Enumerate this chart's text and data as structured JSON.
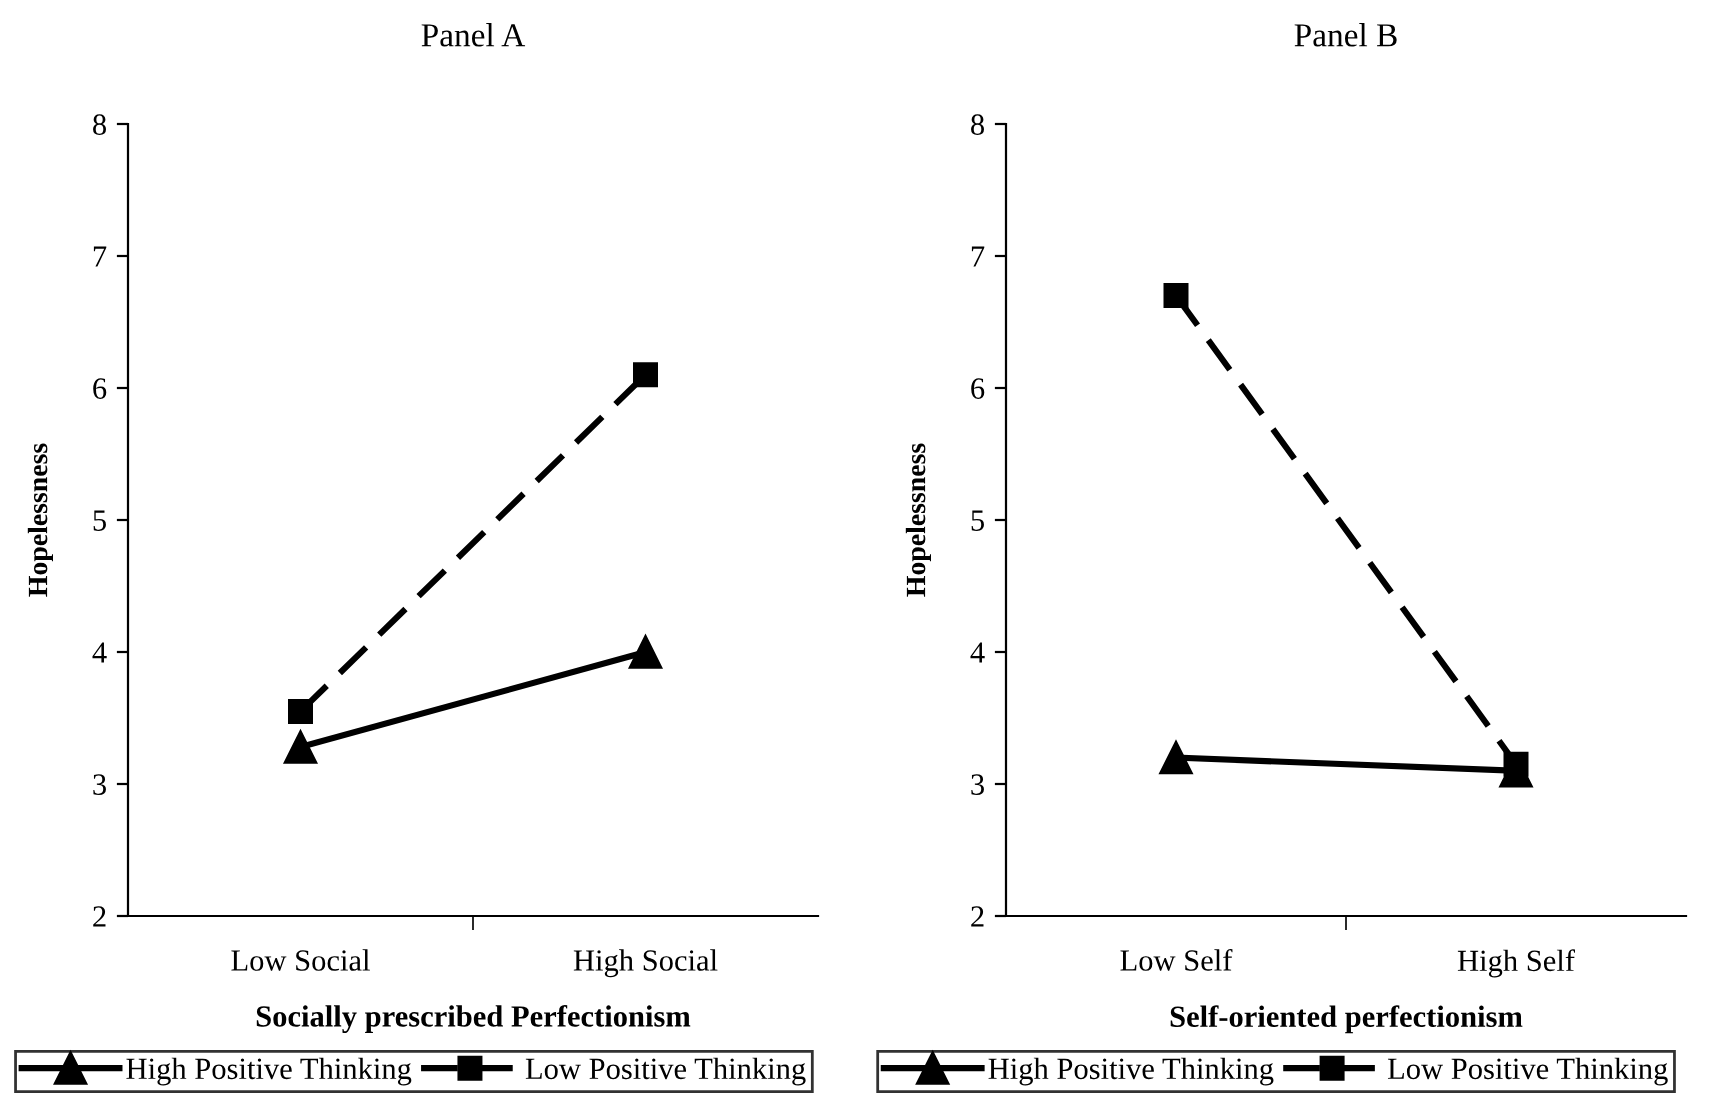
{
  "chart_data": [
    {
      "type": "line",
      "title": "Panel A",
      "xlabel": "Socially prescribed Perfectionism",
      "ylabel": "Hopelessness",
      "categories": [
        "Low Social",
        "High Social"
      ],
      "series": [
        {
          "name": "High Positive Thinking",
          "color": "#000000",
          "values": [
            3.28,
            4.0
          ],
          "marker": "triangle",
          "line_style": "solid"
        },
        {
          "name": "Low Positive Thinking",
          "color": "#000000",
          "values": [
            3.55,
            6.1
          ],
          "marker": "square",
          "line_style": "dashed"
        }
      ],
      "ylim": [
        2,
        8
      ],
      "yticks": [
        2,
        3,
        4,
        5,
        6,
        7,
        8
      ],
      "grid": false,
      "legend": "bottom"
    },
    {
      "type": "line",
      "title": "Panel B",
      "xlabel": "Self-oriented perfectionism",
      "ylabel": "Hopelessness",
      "categories": [
        "Low Self",
        "High Self"
      ],
      "series": [
        {
          "name": "High Positive Thinking",
          "color": "#000000",
          "values": [
            3.2,
            3.1
          ],
          "marker": "triangle",
          "line_style": "solid"
        },
        {
          "name": "Low Positive Thinking",
          "color": "#000000",
          "values": [
            6.7,
            3.15
          ],
          "marker": "square",
          "line_style": "dashed"
        }
      ],
      "ylim": [
        2,
        8
      ],
      "yticks": [
        2,
        3,
        4,
        5,
        6,
        7,
        8
      ],
      "grid": false,
      "legend": "bottom"
    }
  ]
}
